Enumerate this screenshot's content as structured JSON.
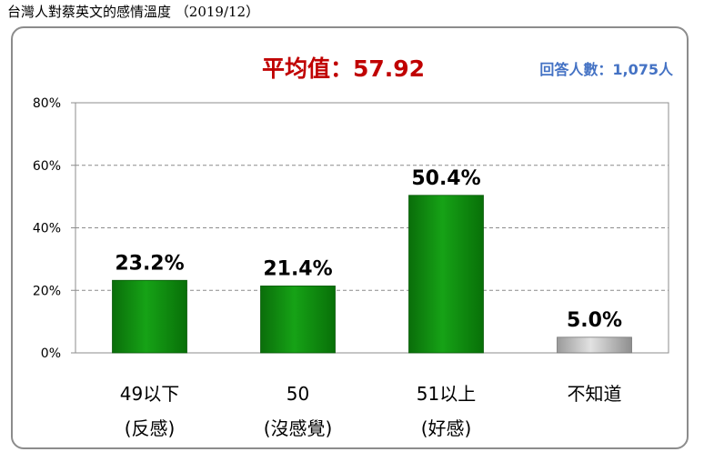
{
  "title": "台灣人對蔡英文的感情溫度 （2019/12）",
  "average_label": "平均值：57.92",
  "respondents_label": "回答人數：1,075人",
  "colors": {
    "average": "#c00000",
    "respondents": "#4472c4",
    "bar": "#109010",
    "bar_unknown": "#c8c8c8"
  },
  "chart_data": {
    "type": "bar",
    "categories": [
      {
        "line1": "49以下",
        "line2": "(反感)"
      },
      {
        "line1": "50",
        "line2": "(沒感覺)"
      },
      {
        "line1": "51以上",
        "line2": "(好感)"
      },
      {
        "line1": "不知道",
        "line2": ""
      }
    ],
    "values": [
      23.2,
      21.4,
      50.4,
      5.0
    ],
    "data_labels": [
      "23.2%",
      "21.4%",
      "50.4%",
      "5.0%"
    ],
    "yticks": [
      "0%",
      "20%",
      "40%",
      "60%",
      "80%"
    ],
    "ylim": [
      0,
      80
    ],
    "grid": true,
    "gridline_style": "dashed"
  }
}
